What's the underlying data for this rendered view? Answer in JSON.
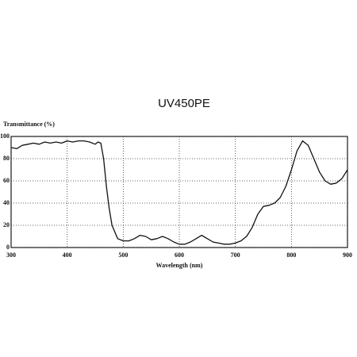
{
  "chart_data": {
    "type": "line",
    "title": "UV450PE",
    "y_label": "Transmittance (%)",
    "x_label": "Wavelength (nm)",
    "x": [
      300,
      310,
      320,
      330,
      340,
      350,
      360,
      370,
      380,
      390,
      400,
      410,
      420,
      430,
      440,
      450,
      455,
      460,
      465,
      470,
      475,
      480,
      490,
      500,
      510,
      520,
      530,
      540,
      550,
      560,
      570,
      580,
      590,
      600,
      610,
      620,
      630,
      640,
      650,
      660,
      670,
      680,
      690,
      700,
      710,
      720,
      730,
      740,
      750,
      760,
      770,
      780,
      790,
      800,
      810,
      820,
      830,
      840,
      850,
      860,
      870,
      880,
      890,
      900
    ],
    "values": [
      90,
      89,
      92,
      93,
      94,
      93,
      95,
      94,
      95,
      94,
      96,
      95,
      96,
      96,
      95,
      93,
      95,
      94,
      80,
      55,
      35,
      20,
      8,
      6,
      6,
      8,
      11,
      10,
      7,
      8,
      10,
      8,
      5,
      3,
      3,
      5,
      8,
      11,
      8,
      5,
      4,
      3,
      3,
      4,
      6,
      10,
      18,
      30,
      37,
      38,
      40,
      45,
      55,
      70,
      87,
      96,
      92,
      80,
      68,
      60,
      57,
      58,
      62,
      70
    ],
    "color": "#111111",
    "xlim": [
      300,
      900
    ],
    "xticks": [
      300,
      400,
      500,
      600,
      700,
      800,
      900
    ],
    "ylim": [
      0,
      100
    ],
    "yticks": [
      0,
      20,
      40,
      60,
      80,
      100
    ],
    "grid": true
  }
}
